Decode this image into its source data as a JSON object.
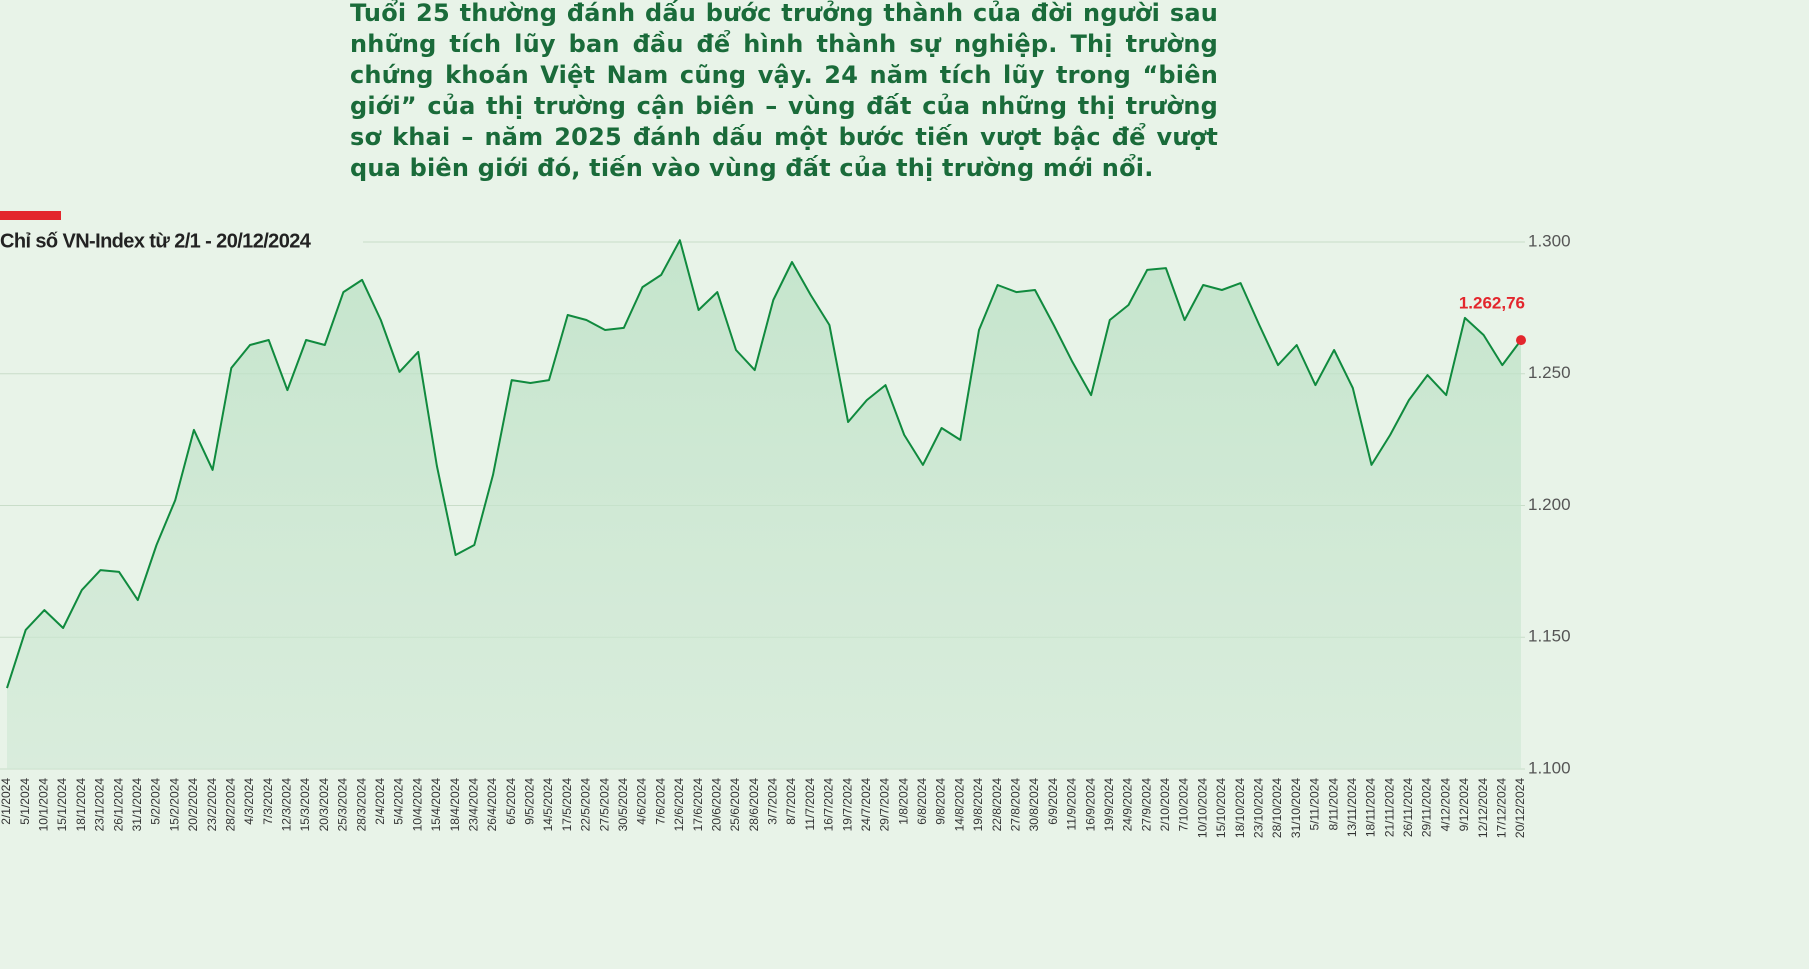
{
  "intro": "Tuổi 25 thường đánh dấu bước trưởng thành của đời người sau những tích lũy ban đầu để hình thành sự nghiệp. Thị trường chứng khoán Việt Nam cũng vậy. 24 năm tích lũy trong “biên giới” của thị trường cận biên – vùng đất của những thị trường sơ khai – năm 2025 đánh dấu một bước tiến vượt bậc để vượt qua biên giới đó, tiến vào vùng đất của thị trường mới nổi.",
  "chart_data": {
    "type": "area",
    "title": "Chỉ số VN-Index từ 2/1 - 20/12/2024",
    "categories": [
      "2/1/2024",
      "5/1/2024",
      "10/1/2024",
      "15/1/2024",
      "18/1/2024",
      "23/1/2024",
      "26/1/2024",
      "31/1/2024",
      "5/2/2024",
      "15/2/2024",
      "20/2/2024",
      "23/2/2024",
      "28/2/2024",
      "4/3/2024",
      "7/3/2024",
      "12/3/2024",
      "15/3/2024",
      "20/3/2024",
      "25/3/2024",
      "28/3/2024",
      "2/4/2024",
      "5/4/2024",
      "10/4/2024",
      "15/4/2024",
      "18/4/2024",
      "23/4/2024",
      "26/4/2024",
      "6/5/2024",
      "9/5/2024",
      "14/5/2024",
      "17/5/2024",
      "22/5/2024",
      "27/5/2024",
      "30/5/2024",
      "4/6/2024",
      "7/6/2024",
      "12/6/2024",
      "17/6/2024",
      "20/6/2024",
      "25/6/2024",
      "28/6/2024",
      "3/7/2024",
      "8/7/2024",
      "11/7/2024",
      "16/7/2024",
      "19/7/2024",
      "24/7/2024",
      "29/7/2024",
      "1/8/2024",
      "6/8/2024",
      "9/8/2024",
      "14/8/2024",
      "19/8/2024",
      "22/8/2024",
      "27/8/2024",
      "30/8/2024",
      "6/9/2024",
      "11/9/2024",
      "16/9/2024",
      "19/9/2024",
      "24/9/2024",
      "27/9/2024",
      "2/10/2024",
      "7/10/2024",
      "10/10/2024",
      "15/10/2024",
      "18/10/2024",
      "23/10/2024",
      "28/10/2024",
      "31/10/2024",
      "5/11/2024",
      "8/11/2024",
      "13/11/2024",
      "18/11/2024",
      "21/11/2024",
      "26/11/2024",
      "29/11/2024",
      "4/12/2024",
      "9/12/2024",
      "12/12/2024",
      "17/12/2024",
      "20/12/2024"
    ],
    "values": [
      1130.7,
      1152.8,
      1160.3,
      1153.5,
      1167.9,
      1175.5,
      1174.8,
      1164.1,
      1185,
      1202,
      1228.7,
      1213.5,
      1252.2,
      1260.9,
      1262.8,
      1243.8,
      1262.8,
      1260.9,
      1281,
      1285.6,
      1270.4,
      1250.7,
      1258.3,
      1215,
      1181.2,
      1185,
      1211.6,
      1247.6,
      1246.5,
      1247.6,
      1272.3,
      1270.4,
      1266.6,
      1267.4,
      1282.9,
      1287.5,
      1300.7,
      1274.2,
      1281,
      1259,
      1251.4,
      1278,
      1292.4,
      1279.9,
      1268.5,
      1231.7,
      1240,
      1245.7,
      1226.8,
      1215.4,
      1229.4,
      1224.9,
      1266.6,
      1283.7,
      1281,
      1281.8,
      1268.5,
      1254.5,
      1241.9,
      1270.4,
      1276.1,
      1289.4,
      1290.1,
      1270.4,
      1283.7,
      1281.8,
      1284.4,
      1268.5,
      1253.3,
      1260.9,
      1245.7,
      1259,
      1244.6,
      1215.4,
      1226.8,
      1240,
      1249.5,
      1241.9,
      1271.2,
      1264.7,
      1253.3,
      1262.76
    ],
    "value_labels": [
      null,
      null,
      null,
      null,
      null,
      null,
      null,
      null,
      null,
      null,
      null,
      null,
      null,
      null,
      null,
      null,
      null,
      null,
      null,
      null,
      null,
      null,
      null,
      null,
      null,
      null,
      null,
      null,
      null,
      null,
      null,
      null,
      null,
      null,
      null,
      null,
      null,
      null,
      null,
      null,
      null,
      null,
      null,
      null,
      null,
      null,
      null,
      null,
      null,
      null,
      null,
      null,
      null,
      null,
      null,
      null,
      null,
      null,
      null,
      null,
      null,
      null,
      null,
      null,
      null,
      null,
      null,
      null,
      null,
      null,
      null,
      null,
      null,
      null,
      null,
      null,
      null,
      null,
      null,
      null,
      null,
      "1.262,76"
    ],
    "color": "#108a3e",
    "highlight_color": "#e3262d",
    "ylim": [
      1100,
      1300
    ],
    "yticks": [
      {
        "value": 1100,
        "label": "1.100"
      },
      {
        "value": 1150,
        "label": "1.150"
      },
      {
        "value": 1200,
        "label": "1.200"
      },
      {
        "value": 1250,
        "label": "1.250"
      },
      {
        "value": 1300,
        "label": "1.300"
      }
    ],
    "grid": true
  }
}
